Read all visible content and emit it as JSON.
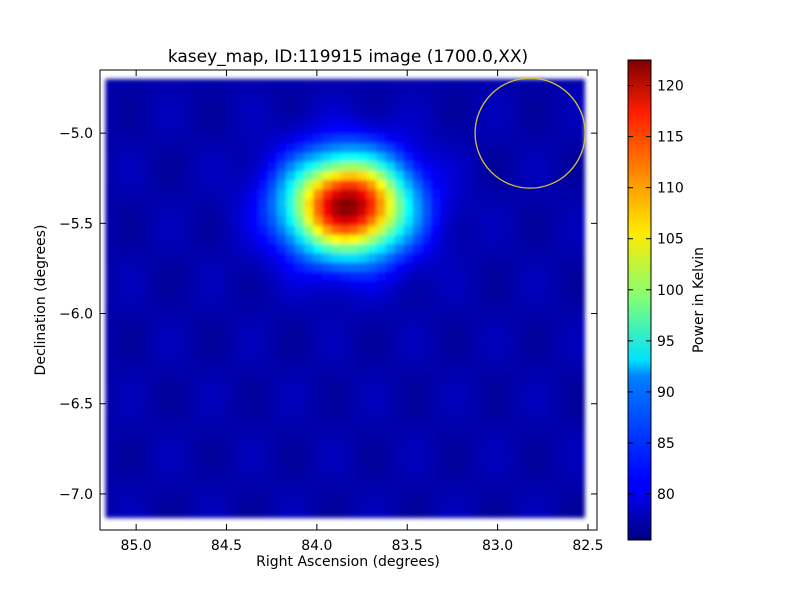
{
  "chart_data": {
    "type": "heatmap",
    "title": "kasey_map, ID:119915 image (1700.0,XX)",
    "xlabel": "Right Ascension (degrees)",
    "ylabel": "Declination (degrees)",
    "colorbar_label": "Power in Kelvin",
    "colormap": "jet",
    "xlim": [
      85.2,
      82.45
    ],
    "ylim": [
      -7.2,
      -4.65
    ],
    "x_inverted": true,
    "x_ticks": [
      {
        "value": 85.0,
        "label": "85.0"
      },
      {
        "value": 84.5,
        "label": "84.5"
      },
      {
        "value": 84.0,
        "label": "84.0"
      },
      {
        "value": 83.5,
        "label": "83.5"
      },
      {
        "value": 83.0,
        "label": "83.0"
      },
      {
        "value": 82.5,
        "label": "82.5"
      }
    ],
    "y_ticks": [
      {
        "value": -5.0,
        "label": "−5.0"
      },
      {
        "value": -5.5,
        "label": "−5.5"
      },
      {
        "value": -6.0,
        "label": "−6.0"
      },
      {
        "value": -6.5,
        "label": "−6.5"
      },
      {
        "value": -7.0,
        "label": "−7.0"
      }
    ],
    "colorbar_range": [
      75.5,
      122.5
    ],
    "colorbar_ticks": [
      {
        "value": 80,
        "label": "80"
      },
      {
        "value": 85,
        "label": "85"
      },
      {
        "value": 90,
        "label": "90"
      },
      {
        "value": 95,
        "label": "95"
      },
      {
        "value": 100,
        "label": "100"
      },
      {
        "value": 105,
        "label": "105"
      },
      {
        "value": 110,
        "label": "110"
      },
      {
        "value": 115,
        "label": "115"
      },
      {
        "value": 120,
        "label": "120"
      }
    ],
    "map_extent": {
      "ra": [
        85.17,
        82.52
      ],
      "dec": [
        -7.13,
        -4.7
      ]
    },
    "background_level": 77.5,
    "source": {
      "ra_center": 83.83,
      "dec_center": -5.4,
      "peak": 122.5,
      "sigma_ra": 0.23,
      "sigma_dec": 0.19
    },
    "beam": {
      "ra_center": 82.82,
      "dec_center": -5.0,
      "radius_deg": 0.305,
      "color": "#d4c23a"
    }
  }
}
